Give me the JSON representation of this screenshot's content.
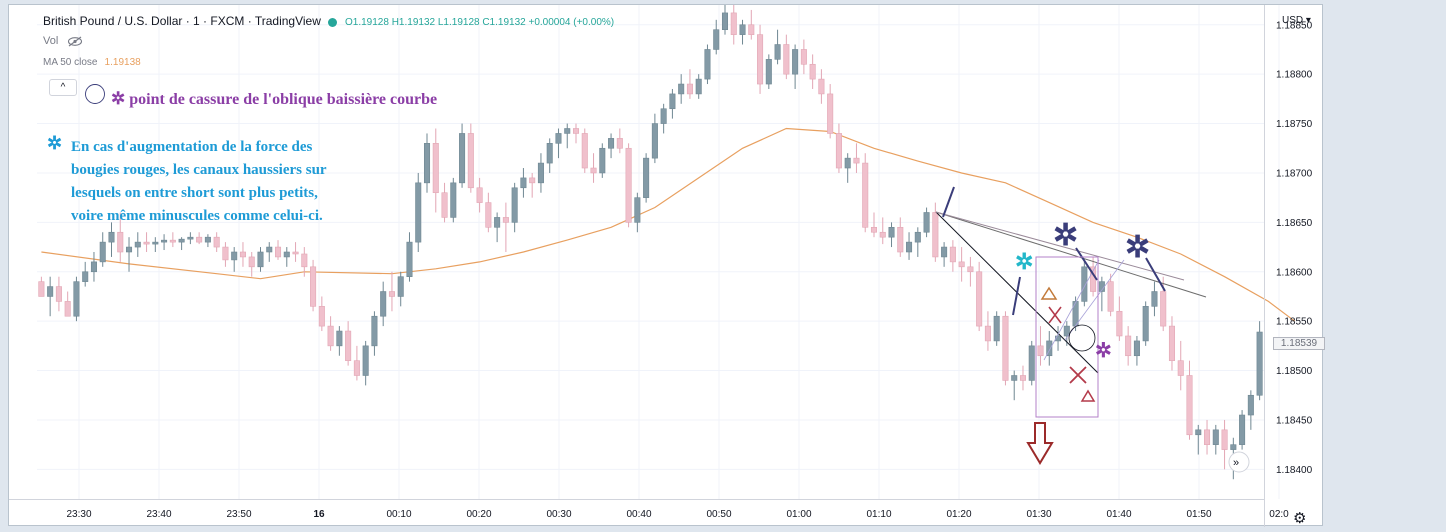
{
  "header": {
    "symbol": "British Pound / U.S. Dollar · 1 · FXCM · TradingView",
    "ohlc": "O1.19128 H1.19132 L1.19128 C1.19132 +0.00004 (+0.00%)",
    "vol_label": "Vol",
    "ma_label": "MA 50 close",
    "ma_value": "1.19138",
    "collapse_glyph": "^"
  },
  "annotations": {
    "line1": "point de cassure de l'oblique baissière courbe",
    "note_lines": [
      "En cas d'augmentation de la force des",
      "bougies rouges, les canaux haussiers sur",
      "lesquels on entre short sont plus petits,",
      "voire même minuscules comme celui-ci."
    ],
    "star_glyph": "✲"
  },
  "axis": {
    "currency": "USD ▾",
    "current_price": "1.18539",
    "settings_icon": "gear-icon"
  },
  "colors": {
    "up": "#839aa6",
    "down": "#f0c0cc",
    "ma": "#e8a060",
    "note_purple": "#8b3ea6",
    "note_cyan": "#1e9bd6",
    "dark_blue": "#3a3d7a"
  },
  "chart_data": {
    "type": "candlestick",
    "title": "British Pound / U.S. Dollar · 1 · FXCM · TradingView",
    "ylim": [
      1.1837,
      1.1887
    ],
    "y_ticks": [
      1.184,
      1.1845,
      1.185,
      1.1855,
      1.186,
      1.1865,
      1.187,
      1.1875,
      1.188,
      1.1885
    ],
    "y_tick_labels": [
      "1.18400",
      "1.18450",
      "1.18500",
      "1.18550",
      "1.18600",
      "1.18650",
      "1.18700",
      "1.18750",
      "1.18800",
      "1.18850"
    ],
    "x_tick_labels": [
      "23:30",
      "23:40",
      "23:50",
      "16",
      "00:10",
      "00:20",
      "00:30",
      "00:40",
      "00:50",
      "01:00",
      "01:10",
      "01:20",
      "01:30",
      "01:40",
      "01:50",
      "02:0"
    ],
    "grid": true,
    "candles": [
      [
        1.1859,
        1.18595,
        1.18575,
        1.18575
      ],
      [
        1.18575,
        1.18595,
        1.18555,
        1.18585
      ],
      [
        1.18585,
        1.18595,
        1.1856,
        1.1857
      ],
      [
        1.1857,
        1.1858,
        1.18555,
        1.18555
      ],
      [
        1.18555,
        1.18595,
        1.1855,
        1.1859
      ],
      [
        1.1859,
        1.1861,
        1.18585,
        1.186
      ],
      [
        1.186,
        1.1862,
        1.1859,
        1.1861
      ],
      [
        1.1861,
        1.1864,
        1.18605,
        1.1863
      ],
      [
        1.1863,
        1.1865,
        1.18615,
        1.1864
      ],
      [
        1.1864,
        1.1866,
        1.1861,
        1.1862
      ],
      [
        1.1862,
        1.18635,
        1.186,
        1.18625
      ],
      [
        1.18625,
        1.1864,
        1.18615,
        1.1863
      ],
      [
        1.1863,
        1.1864,
        1.1862,
        1.18628
      ],
      [
        1.18628,
        1.18635,
        1.1862,
        1.1863
      ],
      [
        1.1863,
        1.18638,
        1.18622,
        1.18632
      ],
      [
        1.18632,
        1.1864,
        1.18625,
        1.1863
      ],
      [
        1.1863,
        1.18635,
        1.18622,
        1.18633
      ],
      [
        1.18633,
        1.1864,
        1.18628,
        1.18635
      ],
      [
        1.18635,
        1.1864,
        1.18628,
        1.1863
      ],
      [
        1.1863,
        1.18638,
        1.18625,
        1.18635
      ],
      [
        1.18635,
        1.1864,
        1.1862,
        1.18625
      ],
      [
        1.18625,
        1.1863,
        1.18605,
        1.18612
      ],
      [
        1.18612,
        1.18625,
        1.186,
        1.1862
      ],
      [
        1.1862,
        1.1863,
        1.18605,
        1.18615
      ],
      [
        1.18615,
        1.1862,
        1.18595,
        1.18605
      ],
      [
        1.18605,
        1.18625,
        1.186,
        1.1862
      ],
      [
        1.1862,
        1.1863,
        1.1861,
        1.18625
      ],
      [
        1.18625,
        1.18632,
        1.18612,
        1.18615
      ],
      [
        1.18615,
        1.18625,
        1.18605,
        1.1862
      ],
      [
        1.1862,
        1.1863,
        1.1861,
        1.18618
      ],
      [
        1.18618,
        1.18625,
        1.18595,
        1.18605
      ],
      [
        1.18605,
        1.18612,
        1.1856,
        1.18565
      ],
      [
        1.18565,
        1.18575,
        1.1854,
        1.18545
      ],
      [
        1.18545,
        1.18555,
        1.1852,
        1.18525
      ],
      [
        1.18525,
        1.18545,
        1.18515,
        1.1854
      ],
      [
        1.1854,
        1.1855,
        1.18505,
        1.1851
      ],
      [
        1.1851,
        1.18525,
        1.1849,
        1.18495
      ],
      [
        1.18495,
        1.1853,
        1.18485,
        1.18525
      ],
      [
        1.18525,
        1.1856,
        1.18515,
        1.18555
      ],
      [
        1.18555,
        1.1859,
        1.18545,
        1.1858
      ],
      [
        1.1858,
        1.186,
        1.1856,
        1.18575
      ],
      [
        1.18575,
        1.186,
        1.18565,
        1.18595
      ],
      [
        1.18595,
        1.1864,
        1.1859,
        1.1863
      ],
      [
        1.1863,
        1.187,
        1.1862,
        1.1869
      ],
      [
        1.1869,
        1.1874,
        1.1868,
        1.1873
      ],
      [
        1.1873,
        1.18745,
        1.1866,
        1.1868
      ],
      [
        1.1868,
        1.1869,
        1.1865,
        1.18655
      ],
      [
        1.18655,
        1.18695,
        1.1865,
        1.1869
      ],
      [
        1.1869,
        1.1875,
        1.18685,
        1.1874
      ],
      [
        1.1874,
        1.1875,
        1.1868,
        1.18685
      ],
      [
        1.18685,
        1.18695,
        1.1866,
        1.1867
      ],
      [
        1.1867,
        1.1868,
        1.1864,
        1.18645
      ],
      [
        1.18645,
        1.1866,
        1.1863,
        1.18655
      ],
      [
        1.18655,
        1.1867,
        1.1862,
        1.1865
      ],
      [
        1.1865,
        1.1869,
        1.1864,
        1.18685
      ],
      [
        1.18685,
        1.18705,
        1.18675,
        1.18695
      ],
      [
        1.18695,
        1.187,
        1.18675,
        1.1869
      ],
      [
        1.1869,
        1.1872,
        1.1868,
        1.1871
      ],
      [
        1.1871,
        1.18735,
        1.187,
        1.1873
      ],
      [
        1.1873,
        1.18745,
        1.18715,
        1.1874
      ],
      [
        1.1874,
        1.1875,
        1.18725,
        1.18745
      ],
      [
        1.18745,
        1.1875,
        1.1873,
        1.1874
      ],
      [
        1.1874,
        1.18745,
        1.187,
        1.18705
      ],
      [
        1.18705,
        1.1872,
        1.1869,
        1.187
      ],
      [
        1.187,
        1.1873,
        1.18695,
        1.18725
      ],
      [
        1.18725,
        1.1874,
        1.18715,
        1.18735
      ],
      [
        1.18735,
        1.18745,
        1.1872,
        1.18725
      ],
      [
        1.18725,
        1.1873,
        1.18645,
        1.1865
      ],
      [
        1.1865,
        1.1868,
        1.1864,
        1.18675
      ],
      [
        1.18675,
        1.1872,
        1.1867,
        1.18715
      ],
      [
        1.18715,
        1.1876,
        1.1871,
        1.1875
      ],
      [
        1.1875,
        1.1877,
        1.1874,
        1.18765
      ],
      [
        1.18765,
        1.18785,
        1.18755,
        1.1878
      ],
      [
        1.1878,
        1.188,
        1.1877,
        1.1879
      ],
      [
        1.1879,
        1.18805,
        1.18775,
        1.1878
      ],
      [
        1.1878,
        1.188,
        1.18775,
        1.18795
      ],
      [
        1.18795,
        1.1883,
        1.1879,
        1.18825
      ],
      [
        1.18825,
        1.18855,
        1.1882,
        1.18845
      ],
      [
        1.18845,
        1.1887,
        1.1884,
        1.18862
      ],
      [
        1.18862,
        1.1887,
        1.1883,
        1.1884
      ],
      [
        1.1884,
        1.18855,
        1.1883,
        1.1885
      ],
      [
        1.1885,
        1.18865,
        1.18835,
        1.1884
      ],
      [
        1.1884,
        1.1885,
        1.1878,
        1.1879
      ],
      [
        1.1879,
        1.1882,
        1.18785,
        1.18815
      ],
      [
        1.18815,
        1.18845,
        1.1881,
        1.1883
      ],
      [
        1.1883,
        1.1884,
        1.18795,
        1.188
      ],
      [
        1.188,
        1.1883,
        1.18785,
        1.18825
      ],
      [
        1.18825,
        1.18835,
        1.188,
        1.1881
      ],
      [
        1.1881,
        1.1882,
        1.18785,
        1.18795
      ],
      [
        1.18795,
        1.18805,
        1.1877,
        1.1878
      ],
      [
        1.1878,
        1.1879,
        1.18735,
        1.1874
      ],
      [
        1.1874,
        1.1875,
        1.187,
        1.18705
      ],
      [
        1.18705,
        1.1872,
        1.1869,
        1.18715
      ],
      [
        1.18715,
        1.1873,
        1.187,
        1.1871
      ],
      [
        1.1871,
        1.1872,
        1.1864,
        1.18645
      ],
      [
        1.18645,
        1.1866,
        1.18635,
        1.1864
      ],
      [
        1.1864,
        1.18655,
        1.18628,
        1.18635
      ],
      [
        1.18635,
        1.1865,
        1.18625,
        1.18645
      ],
      [
        1.18645,
        1.18655,
        1.18615,
        1.1862
      ],
      [
        1.1862,
        1.1864,
        1.18612,
        1.1863
      ],
      [
        1.1863,
        1.18645,
        1.18615,
        1.1864
      ],
      [
        1.1864,
        1.18665,
        1.18635,
        1.1866
      ],
      [
        1.1866,
        1.1867,
        1.1861,
        1.18615
      ],
      [
        1.18615,
        1.1863,
        1.18605,
        1.18625
      ],
      [
        1.18625,
        1.18632,
        1.186,
        1.1861
      ],
      [
        1.1861,
        1.18625,
        1.1859,
        1.18605
      ],
      [
        1.18605,
        1.18615,
        1.18585,
        1.186
      ],
      [
        1.186,
        1.1861,
        1.1854,
        1.18545
      ],
      [
        1.18545,
        1.1856,
        1.1852,
        1.1853
      ],
      [
        1.1853,
        1.1856,
        1.18525,
        1.18555
      ],
      [
        1.18555,
        1.1856,
        1.18485,
        1.1849
      ],
      [
        1.1849,
        1.185,
        1.1847,
        1.18495
      ],
      [
        1.18495,
        1.18505,
        1.1848,
        1.1849
      ],
      [
        1.1849,
        1.1853,
        1.18485,
        1.18525
      ],
      [
        1.18525,
        1.18545,
        1.18505,
        1.18515
      ],
      [
        1.18515,
        1.1854,
        1.18505,
        1.1853
      ],
      [
        1.1853,
        1.18545,
        1.1852,
        1.18535
      ],
      [
        1.18535,
        1.1855,
        1.18525,
        1.18545
      ],
      [
        1.18545,
        1.18575,
        1.1854,
        1.1857
      ],
      [
        1.1857,
        1.1861,
        1.18565,
        1.18605
      ],
      [
        1.18605,
        1.18615,
        1.18575,
        1.1858
      ],
      [
        1.1858,
        1.18595,
        1.1856,
        1.1859
      ],
      [
        1.1859,
        1.18598,
        1.18555,
        1.1856
      ],
      [
        1.1856,
        1.18575,
        1.1853,
        1.18535
      ],
      [
        1.18535,
        1.18545,
        1.18505,
        1.18515
      ],
      [
        1.18515,
        1.18535,
        1.18505,
        1.1853
      ],
      [
        1.1853,
        1.1857,
        1.18525,
        1.18565
      ],
      [
        1.18565,
        1.1859,
        1.18555,
        1.1858
      ],
      [
        1.1858,
        1.18595,
        1.1854,
        1.18545
      ],
      [
        1.18545,
        1.18555,
        1.185,
        1.1851
      ],
      [
        1.1851,
        1.1853,
        1.1848,
        1.18495
      ],
      [
        1.18495,
        1.1851,
        1.1843,
        1.18435
      ],
      [
        1.18435,
        1.18445,
        1.18415,
        1.1844
      ],
      [
        1.1844,
        1.1845,
        1.18415,
        1.18425
      ],
      [
        1.18425,
        1.18445,
        1.18415,
        1.1844
      ],
      [
        1.1844,
        1.1845,
        1.184,
        1.1842
      ],
      [
        1.1842,
        1.18432,
        1.1839,
        1.18425
      ],
      [
        1.18425,
        1.1846,
        1.1842,
        1.18455
      ],
      [
        1.18455,
        1.1848,
        1.1844,
        1.18475
      ],
      [
        1.18475,
        1.1855,
        1.1847,
        1.18539
      ]
    ],
    "ma50": [
      [
        0,
        1.1862
      ],
      [
        10,
        1.18608
      ],
      [
        20,
        1.18598
      ],
      [
        25,
        1.18593
      ],
      [
        30,
        1.186
      ],
      [
        40,
        1.18598
      ],
      [
        45,
        1.18603
      ],
      [
        50,
        1.1861
      ],
      [
        55,
        1.1862
      ],
      [
        60,
        1.18632
      ],
      [
        65,
        1.18645
      ],
      [
        70,
        1.18665
      ],
      [
        75,
        1.18695
      ],
      [
        80,
        1.18725
      ],
      [
        85,
        1.18745
      ],
      [
        90,
        1.18742
      ],
      [
        95,
        1.18725
      ],
      [
        100,
        1.18712
      ],
      [
        105,
        1.187
      ],
      [
        110,
        1.1869
      ],
      [
        115,
        1.1867
      ],
      [
        120,
        1.1865
      ],
      [
        125,
        1.18635
      ],
      [
        130,
        1.18618
      ],
      [
        135,
        1.18595
      ],
      [
        140,
        1.1857
      ],
      [
        143,
        1.1855
      ]
    ]
  }
}
